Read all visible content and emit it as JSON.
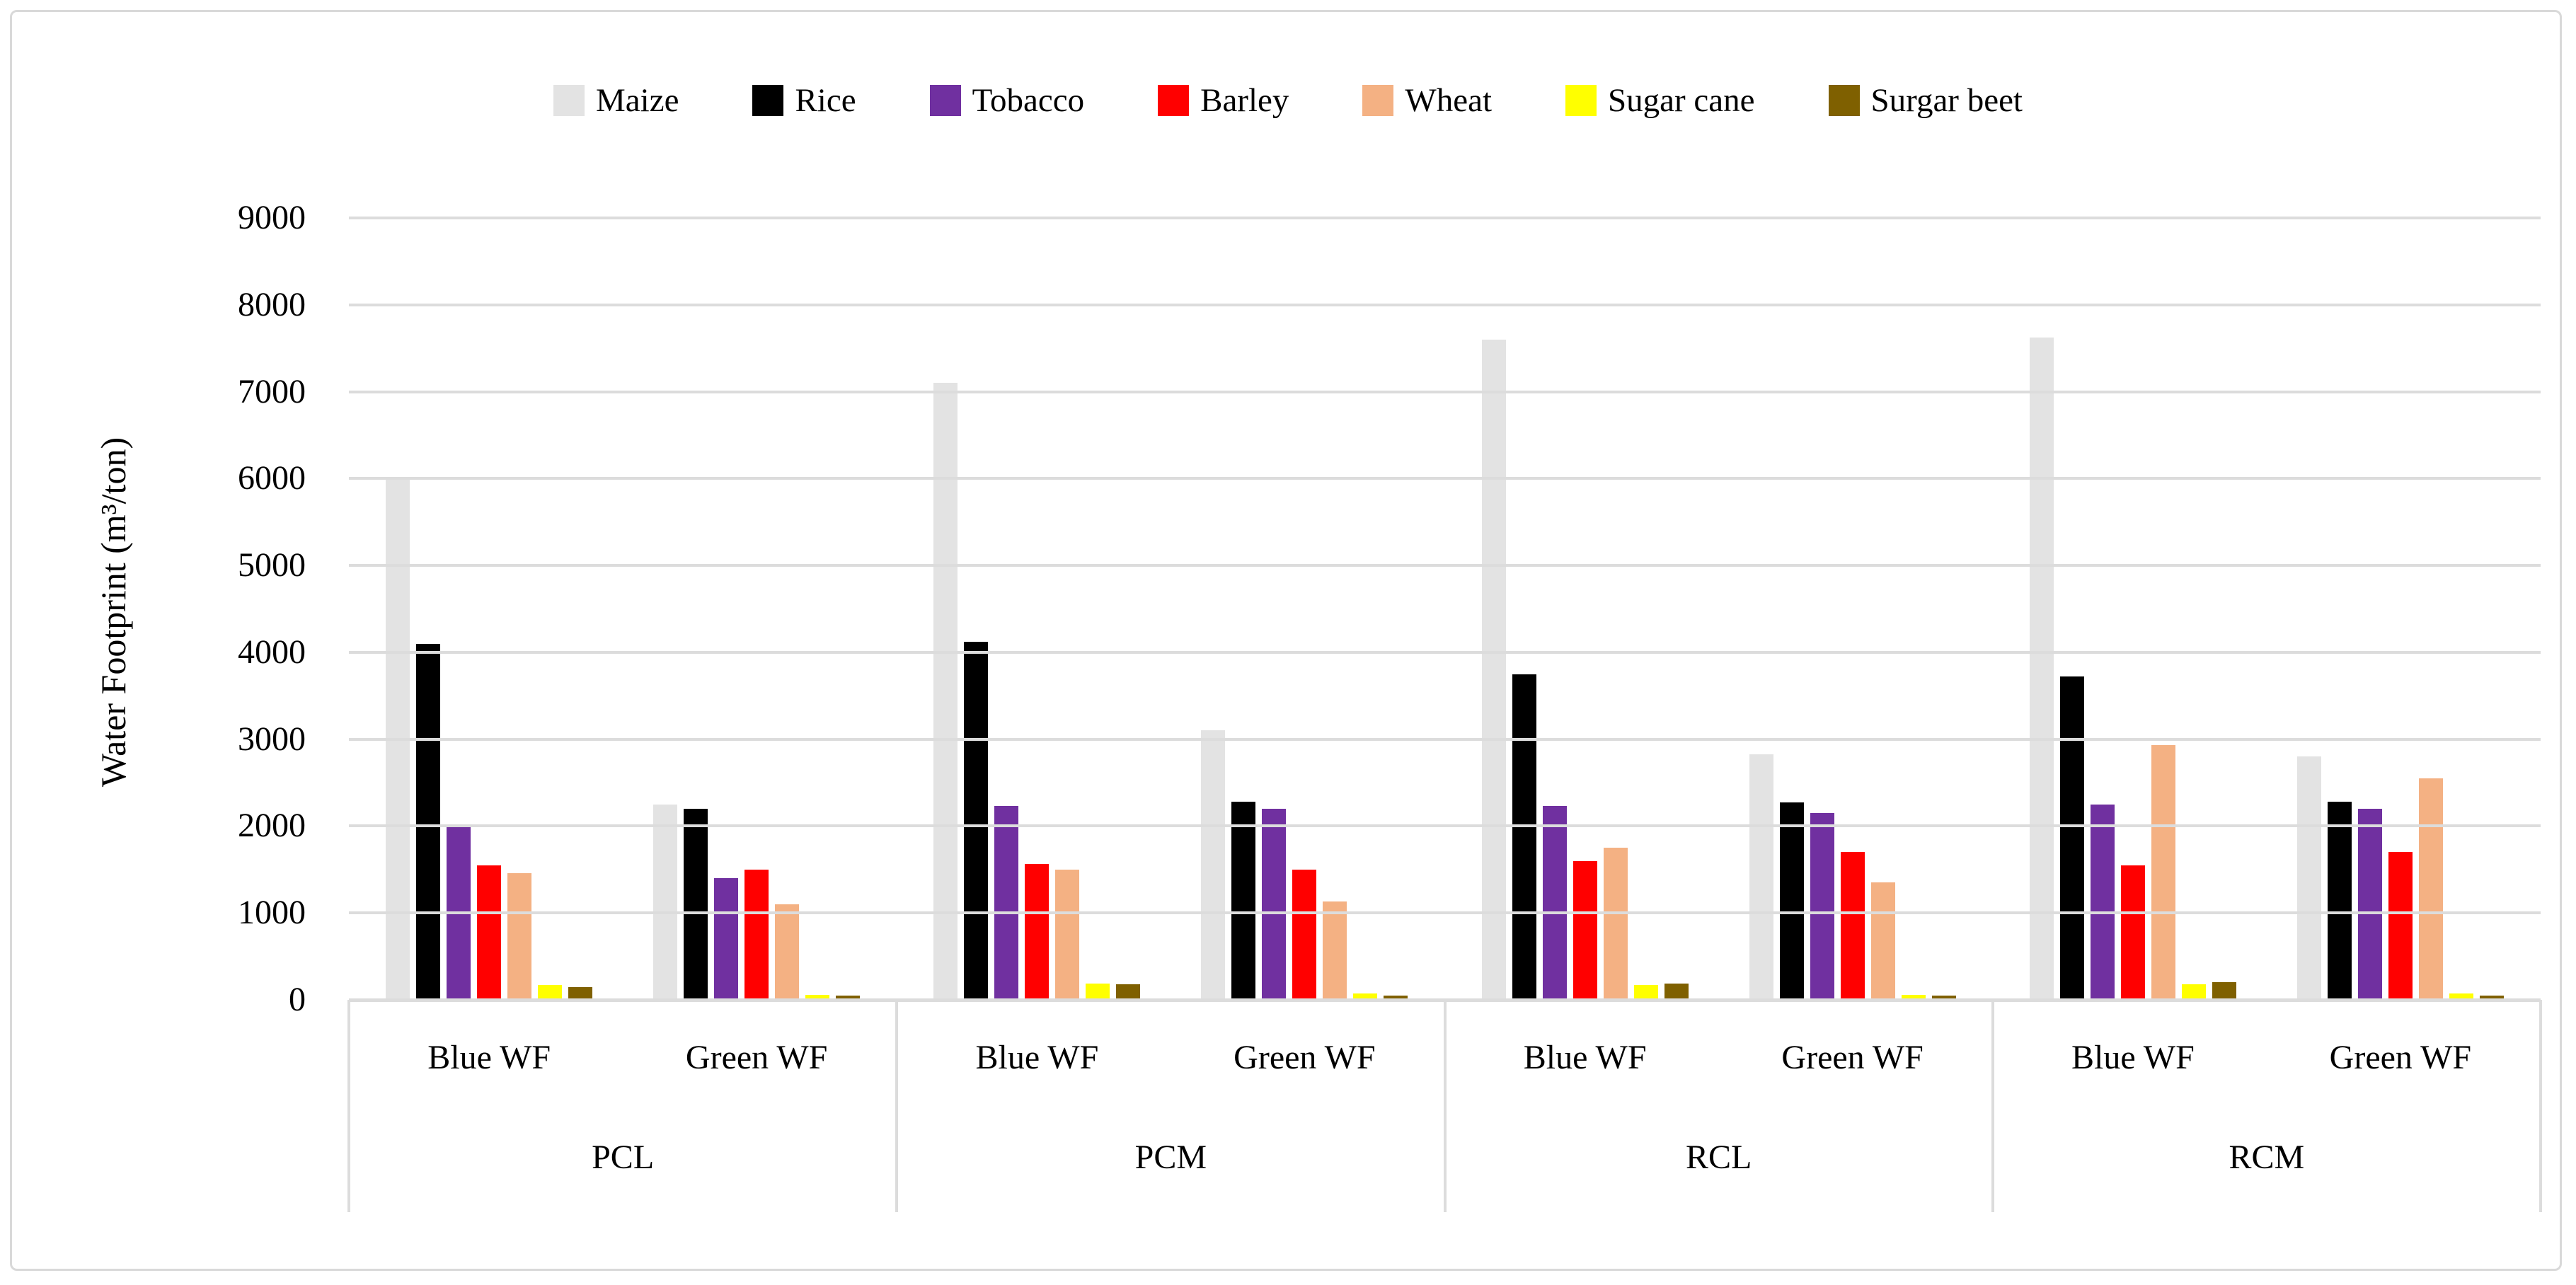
{
  "chart_data": {
    "type": "bar",
    "title": "",
    "ylabel": "Water Footprint (m³/ton)",
    "xlabel": "",
    "ylim": [
      0,
      9000
    ],
    "ytick_step": 1000,
    "yticks": [
      0,
      1000,
      2000,
      3000,
      4000,
      5000,
      6000,
      7000,
      8000,
      9000
    ],
    "grid": "horizontal",
    "legend_position": "top",
    "groups": [
      "PCL",
      "PCM",
      "RCL",
      "RCM"
    ],
    "subgroups": [
      "Blue WF",
      "Green WF"
    ],
    "category_order": [
      "PCL Blue WF",
      "PCL Green WF",
      "PCM Blue WF",
      "PCM Green WF",
      "RCL Blue WF",
      "RCL Green WF",
      "RCM Blue WF",
      "RCM Green WF"
    ],
    "series": [
      {
        "name": "Maize",
        "color": "#e3e3e3",
        "values": [
          6000,
          2250,
          7100,
          3100,
          7600,
          2830,
          7620,
          2800
        ]
      },
      {
        "name": "Rice",
        "color": "#000000",
        "values": [
          4100,
          2200,
          4120,
          2280,
          3750,
          2270,
          3720,
          2280
        ]
      },
      {
        "name": "Tobacco",
        "color": "#7030a0",
        "values": [
          2000,
          1400,
          2230,
          2200,
          2230,
          2150,
          2250,
          2200
        ]
      },
      {
        "name": "Barley",
        "color": "#ff0000",
        "values": [
          1550,
          1500,
          1560,
          1500,
          1600,
          1700,
          1550,
          1700
        ]
      },
      {
        "name": "Wheat",
        "color": "#f4b183",
        "values": [
          1460,
          1100,
          1500,
          1130,
          1750,
          1350,
          2930,
          2550
        ]
      },
      {
        "name": "Sugar cane",
        "color": "#ffff00",
        "values": [
          170,
          60,
          190,
          70,
          170,
          60,
          180,
          70
        ]
      },
      {
        "name": "Surgar beet",
        "color": "#7f6000",
        "values": [
          150,
          50,
          180,
          50,
          190,
          50,
          200,
          50
        ]
      }
    ],
    "colors": {
      "gridline": "#dcdcdc",
      "axis_line": "#dcdcdc",
      "frame_border": "#d9d9d9",
      "text": "#000000"
    }
  }
}
